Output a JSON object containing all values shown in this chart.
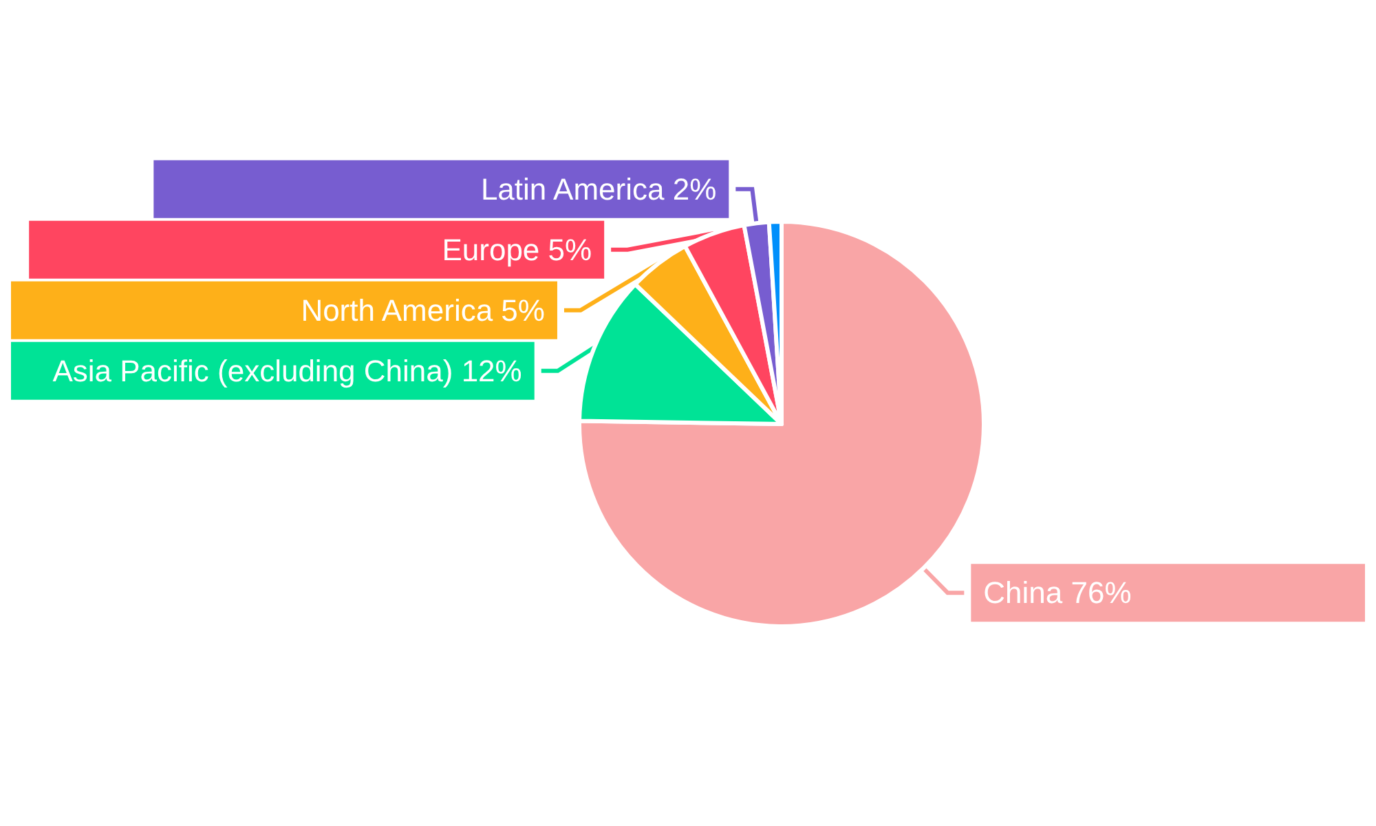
{
  "chart_data": {
    "type": "pie",
    "categories": [
      "China",
      "Asia Pacific (excluding China)",
      "North America",
      "Europe",
      "Latin America",
      null
    ],
    "values": [
      76,
      12,
      5,
      5,
      2,
      1
    ],
    "value_labels": [
      "76%",
      "12%",
      "5%",
      "5%",
      "2%",
      null
    ],
    "colors": [
      "#f9a5a6",
      "#00e396",
      "#feb019",
      "#ff4560",
      "#775dd0",
      "#008ffb"
    ],
    "legend": false
  }
}
